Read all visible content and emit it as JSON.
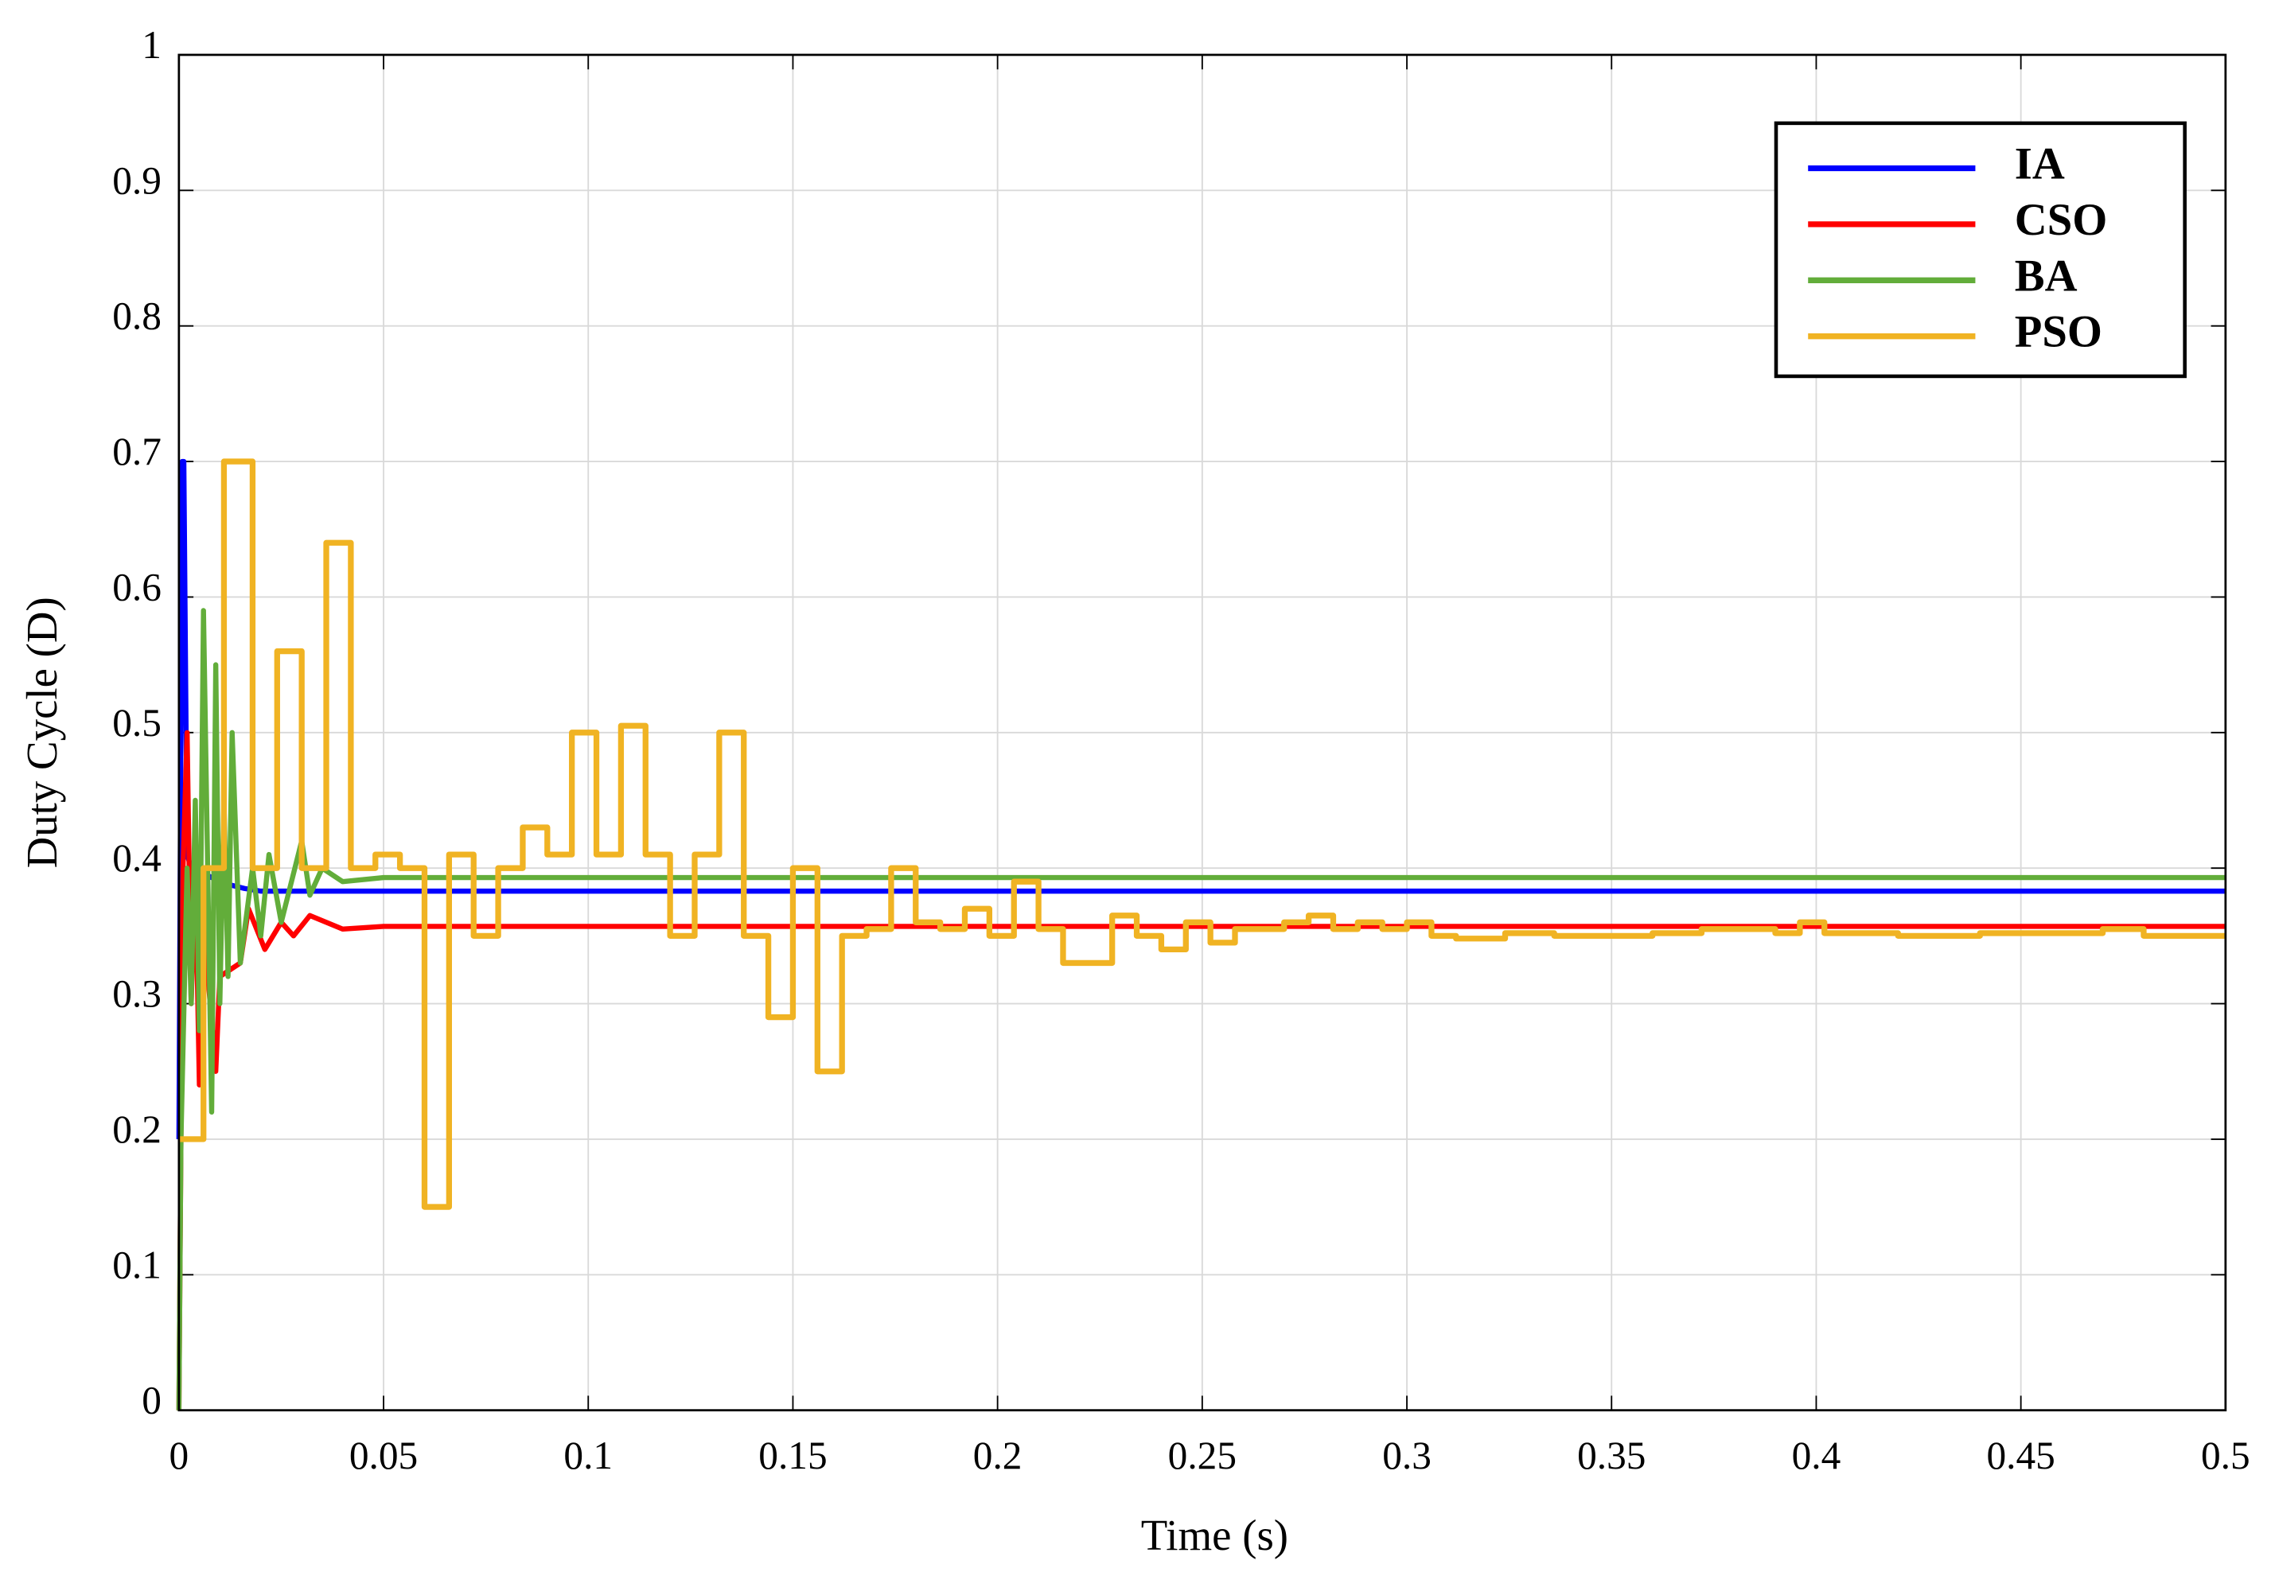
{
  "chart_data": {
    "type": "line",
    "xlabel": "Time (s)",
    "ylabel": "Duty Cycle (D)",
    "xlim": [
      0,
      0.5
    ],
    "ylim": [
      0,
      1
    ],
    "xticks": [
      0,
      0.05,
      0.1,
      0.15,
      0.2,
      0.25,
      0.3,
      0.35,
      0.4,
      0.45,
      0.5
    ],
    "yticks": [
      0,
      0.1,
      0.2,
      0.3,
      0.4,
      0.5,
      0.6,
      0.7,
      0.8,
      0.9,
      1
    ],
    "grid": true,
    "legend": "upper right",
    "series": [
      {
        "name": "IA",
        "color": "#0000ff",
        "drawstyle": "default",
        "x": [
          0,
          0.0008,
          0.0012,
          0.002,
          0.003,
          0.005,
          0.008,
          0.012,
          0.016,
          0.02,
          0.5
        ],
        "values": [
          0.2,
          0.7,
          0.7,
          0.41,
          0.4,
          0.398,
          0.393,
          0.388,
          0.385,
          0.383,
          0.383
        ]
      },
      {
        "name": "CSO",
        "color": "#ff0000",
        "drawstyle": "default",
        "x": [
          0,
          0.001,
          0.002,
          0.003,
          0.004,
          0.005,
          0.006,
          0.009,
          0.01,
          0.015,
          0.017,
          0.021,
          0.025,
          0.028,
          0.032,
          0.04,
          0.05,
          0.5
        ],
        "values": [
          0,
          0.4,
          0.5,
          0.3,
          0.4,
          0.24,
          0.36,
          0.25,
          0.32,
          0.33,
          0.37,
          0.34,
          0.36,
          0.35,
          0.365,
          0.355,
          0.357,
          0.357
        ]
      },
      {
        "name": "BA",
        "color": "#62ad3a",
        "drawstyle": "default",
        "x": [
          0,
          0.0005,
          0.002,
          0.003,
          0.004,
          0.005,
          0.006,
          0.008,
          0.009,
          0.01,
          0.011,
          0.012,
          0.013,
          0.015,
          0.018,
          0.02,
          0.022,
          0.025,
          0.03,
          0.032,
          0.035,
          0.04,
          0.05,
          0.5
        ],
        "values": [
          0,
          0.2,
          0.4,
          0.3,
          0.45,
          0.28,
          0.59,
          0.22,
          0.55,
          0.3,
          0.45,
          0.32,
          0.5,
          0.33,
          0.4,
          0.35,
          0.41,
          0.36,
          0.42,
          0.38,
          0.4,
          0.39,
          0.393,
          0.393
        ]
      },
      {
        "name": "PSO",
        "color": "#f0b323",
        "drawstyle": "steps-post",
        "x": [
          0,
          0.006,
          0.011,
          0.018,
          0.024,
          0.03,
          0.036,
          0.042,
          0.048,
          0.054,
          0.06,
          0.066,
          0.072,
          0.078,
          0.084,
          0.09,
          0.096,
          0.102,
          0.108,
          0.114,
          0.12,
          0.126,
          0.132,
          0.138,
          0.144,
          0.15,
          0.156,
          0.162,
          0.168,
          0.174,
          0.18,
          0.186,
          0.192,
          0.198,
          0.204,
          0.21,
          0.216,
          0.228,
          0.234,
          0.24,
          0.246,
          0.252,
          0.258,
          0.27,
          0.276,
          0.282,
          0.288,
          0.294,
          0.3,
          0.306,
          0.312,
          0.324,
          0.336,
          0.36,
          0.372,
          0.39,
          0.396,
          0.402,
          0.42,
          0.44,
          0.47,
          0.48,
          0.5
        ],
        "values": [
          0.2,
          0.4,
          0.7,
          0.4,
          0.56,
          0.4,
          0.64,
          0.4,
          0.41,
          0.4,
          0.15,
          0.41,
          0.35,
          0.4,
          0.43,
          0.41,
          0.5,
          0.41,
          0.505,
          0.41,
          0.35,
          0.41,
          0.5,
          0.35,
          0.29,
          0.4,
          0.25,
          0.35,
          0.355,
          0.4,
          0.36,
          0.355,
          0.37,
          0.35,
          0.39,
          0.355,
          0.33,
          0.365,
          0.35,
          0.34,
          0.36,
          0.345,
          0.355,
          0.36,
          0.365,
          0.355,
          0.36,
          0.355,
          0.36,
          0.35,
          0.348,
          0.352,
          0.35,
          0.352,
          0.355,
          0.352,
          0.36,
          0.352,
          0.35,
          0.352,
          0.355,
          0.35,
          0.35
        ]
      }
    ]
  }
}
